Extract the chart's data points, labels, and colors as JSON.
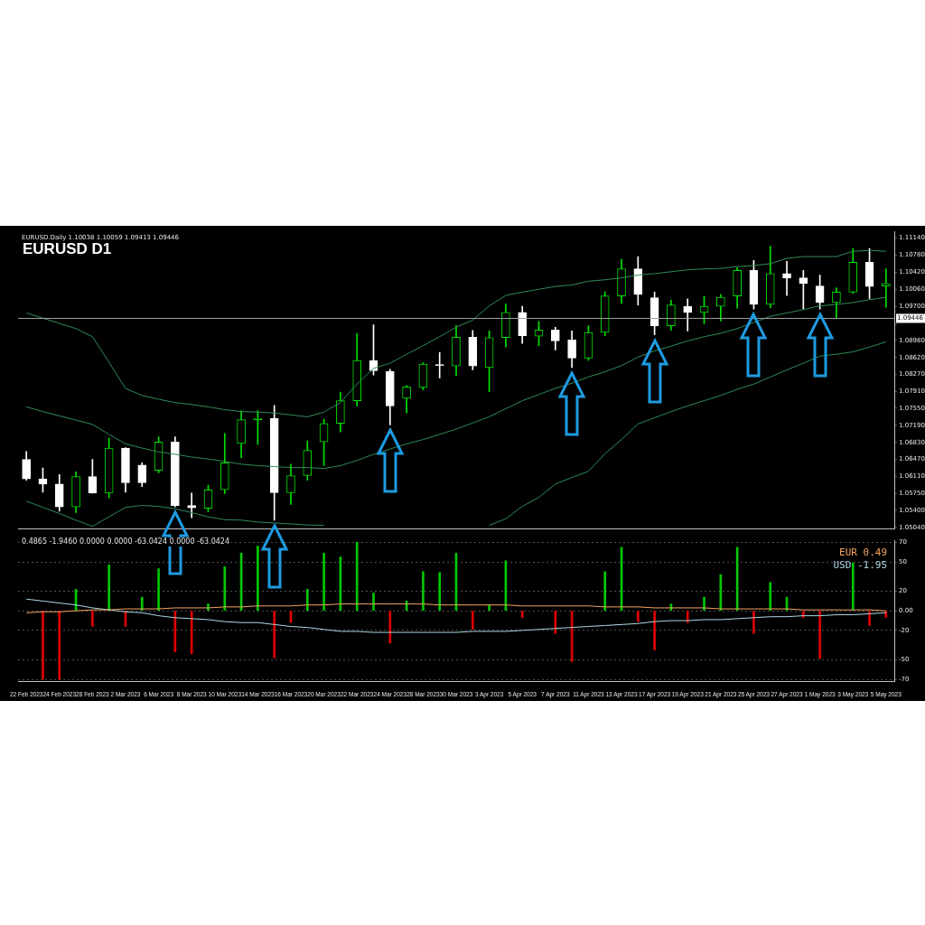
{
  "chart_data": [
    {
      "type": "candlestick",
      "title": "EURUSD D1",
      "subtitle": "EURUSD.Daily 1.10038 1.10059 1.09413 1.09446",
      "categories": [
        null,
        null,
        null,
        null,
        null,
        null,
        null,
        null,
        null,
        null,
        null,
        null,
        null,
        null,
        null,
        null,
        null,
        null,
        null,
        null,
        null,
        null,
        null,
        null,
        null,
        null,
        null,
        null,
        null,
        null,
        null,
        null,
        null,
        null,
        null,
        null,
        null,
        null,
        null,
        null,
        null,
        null,
        null,
        null,
        null,
        null,
        null,
        null,
        null,
        null,
        null,
        null,
        null
      ],
      "ohlc": [
        [
          1.0647,
          1.0664,
          1.0603,
          1.0606
        ],
        [
          1.0606,
          1.0629,
          1.0578,
          1.0595
        ],
        [
          1.0595,
          1.0615,
          1.0538,
          1.0547
        ],
        [
          1.0547,
          1.0621,
          1.0535,
          1.0611
        ],
        [
          1.0611,
          1.0647,
          1.0576,
          1.0576
        ],
        [
          1.0576,
          1.0692,
          1.0566,
          1.0671
        ],
        [
          1.0671,
          1.0672,
          1.0578,
          1.0598
        ],
        [
          1.0635,
          1.064,
          1.059,
          1.0598
        ],
        [
          1.0624,
          1.0695,
          1.0619,
          1.0684
        ],
        [
          1.0684,
          1.0695,
          1.0547,
          1.055
        ],
        [
          1.055,
          1.0576,
          1.0524,
          1.0545
        ],
        [
          1.0544,
          1.0593,
          1.0537,
          1.0583
        ],
        [
          1.0583,
          1.0702,
          1.0575,
          1.064
        ],
        [
          1.0681,
          1.075,
          1.0651,
          1.0731
        ],
        [
          1.0731,
          1.075,
          1.0679,
          1.0734
        ],
        [
          1.0734,
          1.0761,
          1.0519,
          1.0577
        ],
        [
          1.0577,
          1.0637,
          1.0552,
          1.0613
        ],
        [
          1.0613,
          1.0686,
          1.0603,
          1.0666
        ],
        [
          1.0684,
          1.0732,
          1.0634,
          1.0723
        ],
        [
          1.0723,
          1.0789,
          1.0705,
          1.0771
        ],
        [
          1.0771,
          1.0913,
          1.076,
          1.0856
        ],
        [
          1.0856,
          1.0931,
          1.0825,
          1.0834
        ],
        [
          1.0833,
          1.0837,
          1.072,
          1.076
        ],
        [
          1.0776,
          1.0803,
          1.0745,
          1.08
        ],
        [
          1.0799,
          1.0851,
          1.0794,
          1.0848
        ],
        [
          1.0847,
          1.0873,
          1.0819,
          1.0845
        ],
        [
          1.0844,
          1.0929,
          1.0824,
          1.0905
        ],
        [
          1.0905,
          1.0919,
          1.0836,
          1.0844
        ],
        [
          1.0841,
          1.0918,
          1.079,
          1.0904
        ],
        [
          1.0904,
          1.0975,
          1.0884,
          1.0957
        ],
        [
          1.0957,
          1.097,
          1.0892,
          1.0908
        ],
        [
          1.0907,
          1.0938,
          1.0887,
          1.092
        ],
        [
          1.092,
          1.0926,
          1.0878,
          1.0897
        ],
        [
          1.0899,
          1.0918,
          1.0841,
          1.0861
        ],
        [
          1.0861,
          1.0929,
          1.0856,
          1.0915
        ],
        [
          1.0915,
          1.1001,
          1.0908,
          1.0992
        ],
        [
          1.0992,
          1.1069,
          1.0976,
          1.1049
        ],
        [
          1.1049,
          1.1075,
          1.0973,
          1.0995
        ],
        [
          1.0988,
          1.1,
          1.091,
          1.0929
        ],
        [
          1.0929,
          1.0983,
          1.092,
          1.0973
        ],
        [
          1.097,
          1.0986,
          1.0918,
          1.0957
        ],
        [
          1.0957,
          1.0991,
          1.0933,
          1.097
        ],
        [
          1.097,
          1.0995,
          1.0939,
          1.0989
        ],
        [
          1.0992,
          1.1052,
          1.0966,
          1.1046
        ],
        [
          1.1046,
          1.1067,
          1.0964,
          1.0974
        ],
        [
          1.0974,
          1.1097,
          1.0967,
          1.1039
        ],
        [
          1.1039,
          1.1065,
          1.0993,
          1.103
        ],
        [
          1.103,
          1.1046,
          1.0964,
          1.1018
        ],
        [
          1.1013,
          1.1036,
          1.0964,
          1.0978
        ],
        [
          1.0978,
          1.1009,
          1.0944,
          1.1
        ],
        [
          1.1,
          1.1092,
          1.0997,
          1.1063
        ],
        [
          1.1063,
          1.1092,
          1.0986,
          1.1012
        ],
        [
          1.1013,
          1.1049,
          1.0968,
          1.1018
        ]
      ],
      "colors": [
        "#ffffff",
        "#ffffff",
        "#ffffff",
        "#00e000",
        "#ffffff",
        "#00e000",
        "#ffffff",
        "#ffffff",
        "#00e000",
        "#ffffff",
        "#ffffff",
        "#00e000",
        "#00e000",
        "#00e000",
        "#00e000",
        "#ffffff",
        "#00e000",
        "#00e000",
        "#00e000",
        "#00e000",
        "#00e000",
        "#ffffff",
        "#ffffff",
        "#00e000",
        "#00e000",
        "#ffffff",
        "#00e000",
        "#ffffff",
        "#00e000",
        "#00e000",
        "#ffffff",
        "#00e000",
        "#ffffff",
        "#ffffff",
        "#00e000",
        "#00e000",
        "#00e000",
        "#ffffff",
        "#ffffff",
        "#00e000",
        "#ffffff",
        "#00e000",
        "#00e000",
        "#00e000",
        "#ffffff",
        "#00e000",
        "#ffffff",
        "#ffffff",
        "#ffffff",
        "#00e000",
        "#00e000",
        "#ffffff",
        "#00e000"
      ],
      "series": [
        {
          "type": "line",
          "color": "#2e8b57",
          "values": [
            1.0956,
            1.0945,
            1.0934,
            1.0923,
            1.0906,
            1.0852,
            1.0797,
            1.0782,
            1.0774,
            1.0767,
            1.0763,
            1.0758,
            1.0752,
            1.0748,
            1.0747,
            1.0745,
            1.0741,
            1.0737,
            1.0747,
            1.0767,
            1.0806,
            1.0839,
            1.085,
            1.0869,
            1.0887,
            1.0906,
            1.0926,
            1.0941,
            1.0971,
            1.0993,
            1.1,
            1.1006,
            1.1012,
            1.1015,
            1.1023,
            1.1026,
            1.103,
            1.1036,
            1.1039,
            1.1043,
            1.1047,
            1.1049,
            1.105,
            1.1054,
            1.1056,
            1.106,
            1.1071,
            1.1075,
            1.1075,
            1.1075,
            1.1086,
            1.1088,
            1.1086
          ]
        },
        {
          "type": "line",
          "color": "#2e8b57",
          "values": [
            1.0758,
            1.0748,
            1.0739,
            1.073,
            1.0721,
            1.07,
            1.068,
            1.0671,
            1.0663,
            1.0658,
            1.0652,
            1.0648,
            1.0643,
            1.0637,
            1.0634,
            1.0632,
            1.063,
            1.063,
            1.0628,
            1.0634,
            1.0645,
            1.0658,
            1.0669,
            1.068,
            1.0689,
            1.07,
            1.0711,
            1.0724,
            1.0737,
            1.0754,
            1.0771,
            1.0784,
            1.0797,
            1.0808,
            1.0821,
            1.0832,
            1.0845,
            1.0863,
            1.0876,
            1.0886,
            1.0897,
            1.0906,
            1.0913,
            1.0923,
            1.0936,
            1.0949,
            1.0956,
            1.0963,
            1.0971,
            1.0974,
            1.0978,
            1.0984,
            1.0989
          ]
        },
        {
          "type": "line",
          "color": "#2e8b57",
          "values": [
            1.0559,
            1.0546,
            1.0533,
            1.0519,
            1.0506,
            1.0526,
            1.0546,
            1.055,
            1.0548,
            1.0543,
            1.0535,
            1.0526,
            1.052,
            1.0519,
            1.0515,
            1.0513,
            1.0511,
            1.0509,
            1.0508,
            null,
            null,
            null,
            null,
            null,
            null,
            null,
            null,
            null,
            1.0508,
            1.0522,
            1.0548,
            1.0567,
            1.0595,
            1.0609,
            1.0622,
            1.0659,
            1.0689,
            1.0722,
            1.0735,
            1.0748,
            1.076,
            1.0771,
            1.0782,
            1.0795,
            1.0806,
            1.0821,
            1.0836,
            1.085,
            1.0865,
            1.0869,
            1.0874,
            1.0884,
            1.0895
          ]
        }
      ],
      "ref_lines": [
        {
          "axis": "y",
          "value": 1.09446,
          "label": "1.09446",
          "color": "#a0a0a0"
        }
      ],
      "ylim": [
        1.05,
        1.1128
      ],
      "yticks": [
        {
          "value": 1.0504,
          "label": "1.05040"
        },
        {
          "value": 1.054,
          "label": "1.05400"
        },
        {
          "value": 1.0575,
          "label": "1.05750"
        },
        {
          "value": 1.0611,
          "label": "1.06110"
        },
        {
          "value": 1.0647,
          "label": "1.06470"
        },
        {
          "value": 1.0683,
          "label": "1.06830"
        },
        {
          "value": 1.0719,
          "label": "1.07190"
        },
        {
          "value": 1.0755,
          "label": "1.07550"
        },
        {
          "value": 1.0791,
          "label": "1.07910"
        },
        {
          "value": 1.0827,
          "label": "1.08270"
        },
        {
          "value": 1.0862,
          "label": "1.08620"
        },
        {
          "value": 1.0898,
          "label": "1.08980"
        },
        {
          "value": 1.0934,
          "label": null
        },
        {
          "value": 1.097,
          "label": "1.09700"
        },
        {
          "value": 1.1006,
          "label": "1.10060"
        },
        {
          "value": 1.1042,
          "label": "1.10420"
        },
        {
          "value": 1.1078,
          "label": "1.10780"
        },
        {
          "value": 1.1114,
          "label": "1.11140"
        }
      ],
      "tick_labels": "y",
      "marker": "none"
    },
    {
      "type": "bar",
      "title": "0.4865 -1.9460 0.0000 0.0000 -63.0424 0.0000 -63.0424",
      "categories": [
        "22 Feb 2023",
        null,
        "24 Feb 2023",
        null,
        "28 Feb 2023",
        null,
        "2 Mar 2023",
        null,
        "6 Mar 2023",
        null,
        "8 Mar 2023",
        null,
        "10 Mar 2023",
        null,
        "14 Mar 2023",
        null,
        "16 Mar 2023",
        null,
        "20 Mar 2023",
        null,
        "22 Mar 2023",
        null,
        "24 Mar 2023",
        null,
        "28 Mar 2023",
        null,
        "30 Mar 2023",
        null,
        "3 Apr 2023",
        null,
        "5 Apr 2023",
        null,
        "7 Apr 2023",
        null,
        "11 Apr 2023",
        null,
        "13 Apr 2023",
        null,
        "17 Apr 2023",
        null,
        "19 Apr 2023",
        null,
        "21 Apr 2023",
        null,
        "25 Apr 2023",
        null,
        "27 Apr 2023",
        null,
        "1 May 2023",
        null,
        "3 May 2023",
        null,
        "5 May 2023"
      ],
      "series": [
        {
          "type": "bar",
          "colors": [
            "#e00000",
            "#e00000",
            "#e00000",
            "#00c800",
            "#e00000",
            "#00c800",
            "#e00000",
            "#00c800",
            "#00c800",
            "#e00000",
            "#e00000",
            "#00c800",
            "#00c800",
            "#00c800",
            "#00c800",
            "#e00000",
            "#e00000",
            "#00c800",
            "#00c800",
            "#00c800",
            "#00c800",
            "#00c800",
            "#e00000",
            "#00c800",
            "#00c800",
            "#00c800",
            "#00c800",
            "#e00000",
            "#00c800",
            "#00c800",
            "#e00000",
            "#e00000",
            "#e00000",
            "#e00000",
            "#00c800",
            "#00c800",
            "#00c800",
            "#e00000",
            "#e00000",
            "#00c800",
            "#e00000",
            "#00c800",
            "#00c800",
            "#00c800",
            "#e00000",
            "#00c800",
            "#00c800",
            "#e00000",
            "#e00000",
            "#00c800",
            "#00c800",
            "#e00000",
            "#e00000"
          ],
          "values": [
            null,
            -70,
            -70,
            22,
            -16,
            47,
            -16,
            14,
            43,
            -42,
            -44,
            7,
            45,
            59,
            66,
            -48,
            -12,
            22,
            59,
            55,
            70,
            18,
            -33,
            10,
            40,
            39,
            59,
            -19,
            6,
            51,
            -7,
            null,
            -23,
            -52,
            null,
            40,
            65,
            -11,
            -40,
            7,
            -12,
            14,
            37,
            65,
            -23,
            29,
            14,
            -7,
            -49,
            null,
            49,
            -15,
            -7
          ]
        },
        {
          "type": "line",
          "name": "EUR 0.49",
          "color": "#f4a460",
          "values": [
            -2,
            -1,
            -1,
            0,
            1,
            1,
            2,
            2,
            2,
            3,
            3,
            3,
            4,
            4,
            5,
            5,
            5,
            6,
            6,
            7,
            7,
            7,
            7,
            7,
            7,
            6,
            6,
            6,
            6,
            6,
            5,
            5,
            5,
            5,
            5,
            4,
            4,
            4,
            3,
            3,
            3,
            3,
            2,
            2,
            2,
            2,
            2,
            1,
            1,
            1,
            1,
            1,
            0
          ]
        },
        {
          "type": "line",
          "name": "USD -1.95",
          "color": "#add8e6",
          "values": [
            12,
            10,
            8,
            6,
            3,
            1,
            -1,
            -2,
            -5,
            -7,
            -8,
            -9,
            -11,
            -12,
            -12,
            -14,
            -16,
            -17,
            -19,
            -21,
            -21,
            -22,
            -22,
            -22,
            -22,
            -22,
            -22,
            -21,
            -21,
            -21,
            -20,
            -19,
            -18,
            -17,
            -16,
            -15,
            -14,
            -13,
            -11,
            -10,
            -10,
            -9,
            -9,
            -8,
            -7,
            -6,
            -6,
            -5,
            -5,
            -4,
            -4,
            -3,
            -2
          ]
        }
      ],
      "ylim": [
        -72,
        72
      ],
      "yticks": [
        70,
        50,
        20,
        {
          "value": 0,
          "label": "0.00"
        },
        -20,
        -50,
        -70
      ],
      "grid": "y",
      "marker": "none"
    }
  ]
}
